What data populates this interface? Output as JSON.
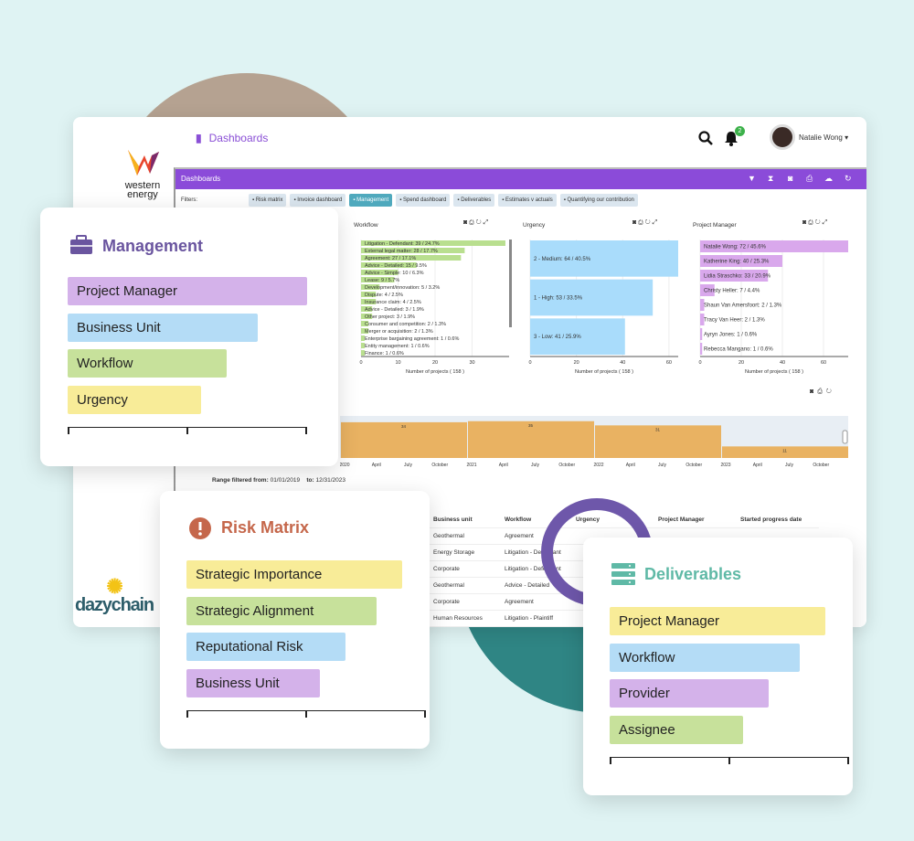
{
  "header": {
    "title": "Dashboards",
    "user": "Natalie Wong",
    "notifications": "2",
    "logo_text": "western energy",
    "footer_logo": "dazychain"
  },
  "panel": {
    "title": "Dashboards",
    "filters_label": "Filters:",
    "filters": [
      "Risk matrix",
      "Invoice dashboard",
      "Management",
      "Spend dashboard",
      "Deliverables",
      "Estimates v actuals",
      "Quantifying our contribution"
    ],
    "active_filter": "Management"
  },
  "range": {
    "label": "Range filtered from:",
    "from": "01/01/2019",
    "to_label": "to:",
    "to": "12/31/2023"
  },
  "table": {
    "headers": [
      "Business unit",
      "Workflow",
      "Urgency",
      "Project Manager",
      "Started progress date"
    ],
    "rows": [
      [
        "Geothermal",
        "Agreement"
      ],
      [
        "Energy Storage",
        "Litigation - Defendant"
      ],
      [
        "Corporate",
        "Litigation - Defendant"
      ],
      [
        "Geothermal",
        "Advice - Detailed"
      ],
      [
        "Corporate",
        "Agreement"
      ],
      [
        "Human Resources",
        "Litigation - Plaintiff"
      ]
    ]
  },
  "cards": {
    "management": {
      "title": "Management",
      "icon": "briefcase-icon",
      "color": "#6a559f",
      "bars": [
        {
          "label": "Project Manager",
          "color": "#d4b2ea"
        },
        {
          "label": "Business Unit",
          "color": "#b4dcf6"
        },
        {
          "label": "Workflow",
          "color": "#c7e19b"
        },
        {
          "label": "Urgency",
          "color": "#f8ec98"
        }
      ]
    },
    "risk": {
      "title": "Risk Matrix",
      "icon": "alert-icon",
      "color": "#c5674b",
      "bars": [
        {
          "label": "Strategic Importance",
          "color": "#f8ec98"
        },
        {
          "label": "Strategic Alignment",
          "color": "#c7e19b"
        },
        {
          "label": "Reputational Risk",
          "color": "#b4dcf6"
        },
        {
          "label": "Business Unit",
          "color": "#d4b2ea"
        }
      ]
    },
    "deliverables": {
      "title": "Deliverables",
      "icon": "server-icon",
      "color": "#5fb9a6",
      "bars": [
        {
          "label": "Project Manager",
          "color": "#f8ec98"
        },
        {
          "label": "Workflow",
          "color": "#b4dcf6"
        },
        {
          "label": "Provider",
          "color": "#d4b2ea"
        },
        {
          "label": "Assignee",
          "color": "#c7e19b"
        }
      ]
    }
  },
  "chart_data": [
    {
      "type": "bar",
      "orientation": "horizontal",
      "title": "Workflow",
      "xlabel": "Number of projects ( 158 )",
      "xlim": [
        0,
        40
      ],
      "xticks": [
        0,
        10,
        20,
        30
      ],
      "color": "#b9df8f",
      "categories": [
        "Litigation - Defendant",
        "External legal matter",
        "Agreement",
        "Advice - Detailed",
        "Advice - Simple",
        "Lease",
        "Development/innovation",
        "Dispute",
        "Insurance claim",
        "Advice - Detailed",
        "Other project",
        "Consumer and competition",
        "Merger or acquisition",
        "Enterprise bargaining agreement",
        "Entity management",
        "Finance"
      ],
      "values": [
        39,
        28,
        27,
        15,
        10,
        9,
        5,
        4,
        4,
        3,
        3,
        2,
        2,
        1,
        1,
        1
      ],
      "labels": [
        "Litigation - Defendant: 39 / 24.7%",
        "External legal matter: 28 / 17.7%",
        "Agreement: 27 / 17.1%",
        "Advice - Detailed: 15 / 9.5%",
        "Advice - Simple: 10 / 6.3%",
        "Lease: 9 / 5.7%",
        "Development/innovation: 5 / 3.2%",
        "Dispute: 4 / 2.5%",
        "Insurance claim: 4 / 2.5%",
        "Advice - Detailed: 3 / 1.9%",
        "Other project: 3 / 1.9%",
        "Consumer and competition: 2 / 1.3%",
        "Merger or acquisition: 2 / 1.3%",
        "Enterprise bargaining agreement: 1 / 0.6%",
        "Entity management: 1 / 0.6%",
        "Finance: 1 / 0.6%"
      ]
    },
    {
      "type": "bar",
      "orientation": "horizontal",
      "title": "Urgency",
      "xlabel": "Number of projects ( 158 )",
      "xlim": [
        0,
        64
      ],
      "xticks": [
        0,
        20,
        40,
        60
      ],
      "color": "#a9dcfb",
      "categories": [
        "2 - Medium",
        "1 - High",
        "3 - Low"
      ],
      "values": [
        64,
        53,
        41
      ],
      "labels": [
        "2 - Medium: 64 / 40.5%",
        "1 - High: 53 / 33.5%",
        "3 - Low: 41 / 25.9%"
      ]
    },
    {
      "type": "bar",
      "orientation": "horizontal",
      "title": "Project Manager",
      "xlabel": "Number of projects ( 158 )",
      "xlim": [
        0,
        72
      ],
      "xticks": [
        0,
        20,
        40,
        60
      ],
      "color": "#d9a8ec",
      "categories": [
        "Natalie Wong",
        "Katherine King",
        "Lidia Straschko",
        "Christy Heller",
        "Shaun Van Amersfoort",
        "Tracy Van Heer",
        "Ayryn Jones",
        "Rebecca Mangano"
      ],
      "values": [
        72,
        40,
        33,
        7,
        2,
        2,
        1,
        1
      ],
      "labels": [
        "Natalie Wong: 72 / 45.6%",
        "Katherine King: 40 / 25.3%",
        "Lidia Straschko: 33 / 20.9%",
        "Christy Heller: 7 / 4.4%",
        "Shaun Van Amersfoort: 2 / 1.3%",
        "Tracy Van Heer: 2 / 1.3%",
        "Ayryn Jones: 1 / 0.6%",
        "Rebecca Mangano: 1 / 0.6%"
      ]
    },
    {
      "type": "bar",
      "title": "",
      "color": "#e9b262",
      "categories": [
        "2020",
        "2021",
        "2022",
        "2023"
      ],
      "values": [
        34,
        35,
        31,
        11
      ],
      "ylim": [
        0,
        40
      ],
      "xticks": [
        "2020",
        "April",
        "July",
        "October",
        "2021",
        "April",
        "July",
        "October",
        "2022",
        "April",
        "July",
        "October",
        "2023",
        "April",
        "July",
        "October"
      ]
    }
  ]
}
